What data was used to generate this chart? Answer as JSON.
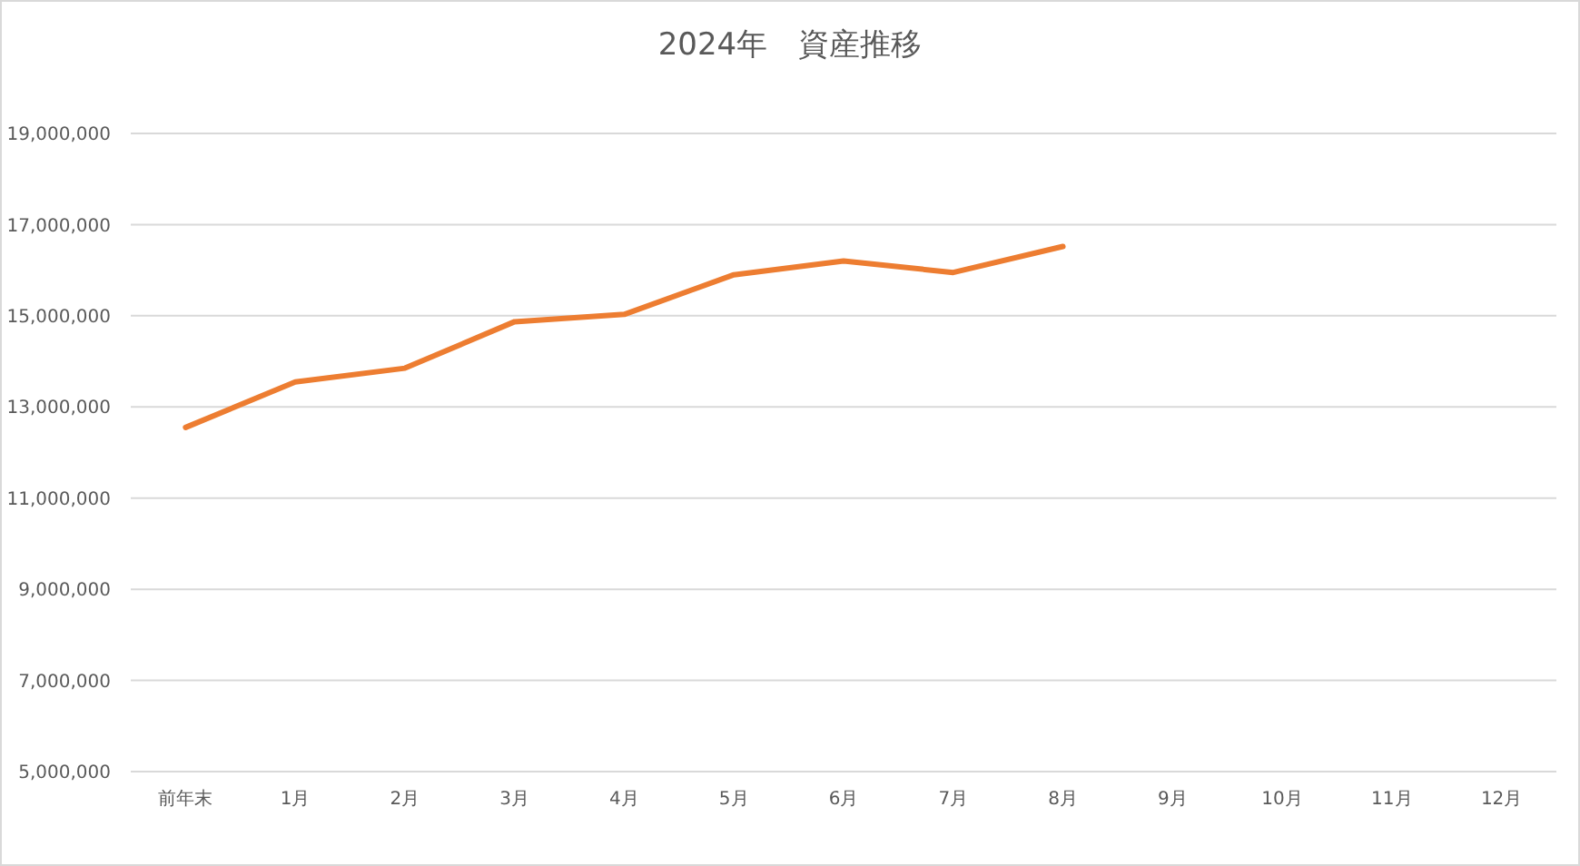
{
  "chart_data": {
    "type": "line",
    "title": "2024年　資産推移",
    "categories": [
      "前年末",
      "1月",
      "2月",
      "3月",
      "4月",
      "5月",
      "6月",
      "7月",
      "8月",
      "9月",
      "10月",
      "11月",
      "12月"
    ],
    "values": [
      12550000,
      13550000,
      13850000,
      14870000,
      15030000,
      15900000,
      16200000,
      15950000,
      16520000,
      null,
      null,
      null,
      null
    ],
    "color": "#ed7d31",
    "ylim": [
      5000000,
      19000000
    ],
    "yticks": [
      {
        "value": 5000000,
        "label": "5,000,000"
      },
      {
        "value": 7000000,
        "label": "7,000,000"
      },
      {
        "value": 9000000,
        "label": "9,000,000"
      },
      {
        "value": 11000000,
        "label": "11,000,000"
      },
      {
        "value": 13000000,
        "label": "13,000,000"
      },
      {
        "value": 15000000,
        "label": "15,000,000"
      },
      {
        "value": 17000000,
        "label": "17,000,000"
      },
      {
        "value": 19000000,
        "label": "19,000,000"
      }
    ],
    "grid": "y"
  }
}
